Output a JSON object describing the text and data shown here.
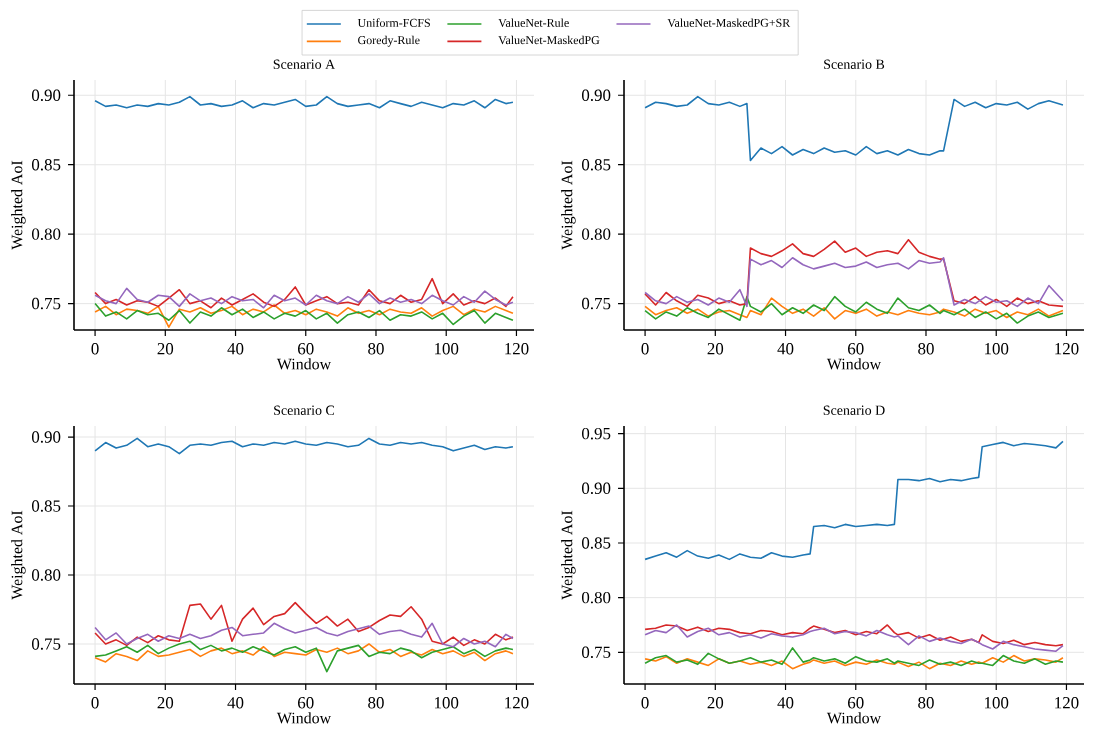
{
  "chart_data": [
    {
      "type": "line",
      "title": "Scenario A",
      "xlabel": "Window",
      "ylabel": "Weighted AoI",
      "xlim": [
        -6,
        125
      ],
      "ylim": [
        0.731,
        0.911
      ],
      "xticks": [
        0,
        20,
        40,
        60,
        80,
        100,
        120
      ],
      "yticks": [
        {
          "value": 0.75,
          "label": "0.75"
        },
        {
          "value": 0.8,
          "label": "0.80"
        },
        {
          "value": 0.85,
          "label": "0.85"
        },
        {
          "value": 0.9,
          "label": "0.90"
        }
      ],
      "grid": true,
      "legend": "top",
      "marker": "none",
      "line_style": "solid",
      "x": [
        0,
        3,
        6,
        9,
        12,
        15,
        18,
        21,
        24,
        27,
        30,
        33,
        36,
        39,
        42,
        45,
        48,
        51,
        54,
        57,
        60,
        63,
        66,
        69,
        72,
        75,
        78,
        81,
        84,
        87,
        90,
        93,
        96,
        99,
        102,
        105,
        108,
        111,
        114,
        117,
        119
      ],
      "series": [
        {
          "name": "Uniform-FCFS",
          "color": "#1f77b4",
          "values": [
            0.896,
            0.892,
            0.893,
            0.891,
            0.893,
            0.892,
            0.894,
            0.893,
            0.895,
            0.899,
            0.893,
            0.894,
            0.892,
            0.893,
            0.896,
            0.891,
            0.894,
            0.893,
            0.895,
            0.897,
            0.892,
            0.893,
            0.899,
            0.894,
            0.892,
            0.893,
            0.894,
            0.891,
            0.896,
            0.894,
            0.892,
            0.895,
            0.893,
            0.891,
            0.894,
            0.893,
            0.896,
            0.891,
            0.897,
            0.894,
            0.895
          ]
        },
        {
          "name": "Goredy-Rule",
          "color": "#ff7f0e",
          "values": [
            0.744,
            0.748,
            0.742,
            0.746,
            0.745,
            0.743,
            0.748,
            0.733,
            0.746,
            0.744,
            0.747,
            0.743,
            0.745,
            0.748,
            0.742,
            0.746,
            0.744,
            0.749,
            0.743,
            0.745,
            0.742,
            0.746,
            0.744,
            0.741,
            0.747,
            0.743,
            0.745,
            0.742,
            0.746,
            0.744,
            0.743,
            0.747,
            0.741,
            0.745,
            0.748,
            0.742,
            0.746,
            0.744,
            0.748,
            0.745,
            0.743
          ]
        },
        {
          "name": "ValueNet-Rule",
          "color": "#2ca02c",
          "values": [
            0.75,
            0.741,
            0.744,
            0.739,
            0.745,
            0.742,
            0.743,
            0.738,
            0.745,
            0.736,
            0.744,
            0.741,
            0.747,
            0.742,
            0.746,
            0.74,
            0.744,
            0.739,
            0.743,
            0.741,
            0.745,
            0.739,
            0.743,
            0.736,
            0.742,
            0.744,
            0.74,
            0.745,
            0.738,
            0.742,
            0.741,
            0.744,
            0.739,
            0.743,
            0.735,
            0.741,
            0.745,
            0.736,
            0.743,
            0.74,
            0.738
          ]
        },
        {
          "name": "ValueNet-MaskedPG",
          "color": "#d62728",
          "values": [
            0.758,
            0.75,
            0.753,
            0.749,
            0.752,
            0.751,
            0.748,
            0.754,
            0.76,
            0.75,
            0.752,
            0.747,
            0.754,
            0.749,
            0.753,
            0.757,
            0.751,
            0.748,
            0.753,
            0.762,
            0.749,
            0.752,
            0.755,
            0.75,
            0.751,
            0.749,
            0.76,
            0.752,
            0.75,
            0.756,
            0.751,
            0.753,
            0.768,
            0.75,
            0.757,
            0.749,
            0.752,
            0.75,
            0.754,
            0.748,
            0.755
          ]
        },
        {
          "name": "ValueNet-MaskedPG+SR",
          "color": "#9467bd",
          "values": [
            0.756,
            0.752,
            0.75,
            0.761,
            0.753,
            0.751,
            0.756,
            0.755,
            0.748,
            0.757,
            0.752,
            0.754,
            0.75,
            0.755,
            0.752,
            0.753,
            0.747,
            0.756,
            0.752,
            0.754,
            0.749,
            0.756,
            0.752,
            0.75,
            0.755,
            0.751,
            0.757,
            0.75,
            0.754,
            0.751,
            0.753,
            0.75,
            0.756,
            0.752,
            0.749,
            0.755,
            0.751,
            0.759,
            0.753,
            0.749,
            0.751
          ]
        }
      ]
    },
    {
      "type": "line",
      "title": "Scenario B",
      "xlabel": "Window",
      "ylabel": "Weighted AoI",
      "xlim": [
        -6,
        125
      ],
      "ylim": [
        0.731,
        0.911
      ],
      "xticks": [
        0,
        20,
        40,
        60,
        80,
        100,
        120
      ],
      "yticks": [
        {
          "value": 0.75,
          "label": "0.75"
        },
        {
          "value": 0.8,
          "label": "0.80"
        },
        {
          "value": 0.85,
          "label": "0.85"
        },
        {
          "value": 0.9,
          "label": "0.90"
        }
      ],
      "grid": true,
      "marker": "none",
      "line_style": "solid",
      "x": [
        0,
        3,
        6,
        9,
        12,
        15,
        18,
        21,
        24,
        27,
        29,
        30,
        33,
        36,
        39,
        42,
        45,
        48,
        51,
        54,
        57,
        60,
        63,
        66,
        69,
        72,
        75,
        78,
        81,
        84,
        85,
        88,
        91,
        94,
        97,
        100,
        103,
        106,
        109,
        112,
        115,
        119
      ],
      "series": [
        {
          "color": "#1f77b4",
          "values": [
            0.891,
            0.895,
            0.894,
            0.892,
            0.893,
            0.899,
            0.894,
            0.893,
            0.895,
            0.892,
            0.894,
            0.853,
            0.862,
            0.858,
            0.863,
            0.857,
            0.861,
            0.858,
            0.862,
            0.859,
            0.86,
            0.857,
            0.863,
            0.858,
            0.86,
            0.857,
            0.861,
            0.858,
            0.857,
            0.86,
            0.86,
            0.897,
            0.892,
            0.895,
            0.891,
            0.894,
            0.893,
            0.895,
            0.89,
            0.894,
            0.896,
            0.893
          ]
        },
        {
          "color": "#ff7f0e",
          "values": [
            0.748,
            0.742,
            0.745,
            0.747,
            0.743,
            0.746,
            0.741,
            0.744,
            0.745,
            0.742,
            0.74,
            0.745,
            0.742,
            0.754,
            0.748,
            0.743,
            0.746,
            0.741,
            0.747,
            0.739,
            0.745,
            0.743,
            0.746,
            0.741,
            0.744,
            0.742,
            0.745,
            0.743,
            0.742,
            0.744,
            0.746,
            0.744,
            0.741,
            0.746,
            0.743,
            0.745,
            0.74,
            0.744,
            0.742,
            0.746,
            0.741,
            0.745
          ]
        },
        {
          "color": "#2ca02c",
          "values": [
            0.745,
            0.739,
            0.744,
            0.741,
            0.747,
            0.743,
            0.74,
            0.746,
            0.742,
            0.738,
            0.755,
            0.748,
            0.744,
            0.75,
            0.742,
            0.747,
            0.743,
            0.749,
            0.745,
            0.755,
            0.748,
            0.744,
            0.751,
            0.746,
            0.743,
            0.754,
            0.747,
            0.745,
            0.749,
            0.743,
            0.745,
            0.742,
            0.746,
            0.74,
            0.744,
            0.739,
            0.743,
            0.736,
            0.741,
            0.744,
            0.74,
            0.743
          ]
        },
        {
          "color": "#d62728",
          "values": [
            0.757,
            0.749,
            0.758,
            0.752,
            0.748,
            0.756,
            0.754,
            0.75,
            0.752,
            0.749,
            0.75,
            0.79,
            0.786,
            0.784,
            0.788,
            0.793,
            0.786,
            0.784,
            0.789,
            0.795,
            0.787,
            0.79,
            0.784,
            0.787,
            0.788,
            0.786,
            0.796,
            0.787,
            0.784,
            0.782,
            0.782,
            0.752,
            0.75,
            0.755,
            0.749,
            0.753,
            0.748,
            0.754,
            0.75,
            0.752,
            0.749,
            0.748
          ]
        },
        {
          "color": "#9467bd",
          "values": [
            0.758,
            0.752,
            0.75,
            0.755,
            0.751,
            0.753,
            0.749,
            0.754,
            0.751,
            0.76,
            0.748,
            0.782,
            0.778,
            0.781,
            0.776,
            0.783,
            0.778,
            0.775,
            0.777,
            0.779,
            0.776,
            0.777,
            0.78,
            0.776,
            0.778,
            0.779,
            0.775,
            0.781,
            0.779,
            0.78,
            0.783,
            0.749,
            0.753,
            0.75,
            0.755,
            0.751,
            0.752,
            0.748,
            0.754,
            0.75,
            0.763,
            0.752
          ]
        }
      ]
    },
    {
      "type": "line",
      "title": "Scenario C",
      "xlabel": "Window",
      "ylabel": "Weighted AoI",
      "xlim": [
        -6,
        125
      ],
      "ylim": [
        0.721,
        0.908
      ],
      "xticks": [
        0,
        20,
        40,
        60,
        80,
        100,
        120
      ],
      "yticks": [
        {
          "value": 0.75,
          "label": "0.75"
        },
        {
          "value": 0.8,
          "label": "0.80"
        },
        {
          "value": 0.85,
          "label": "0.85"
        },
        {
          "value": 0.9,
          "label": "0.90"
        }
      ],
      "grid": true,
      "marker": "none",
      "line_style": "solid",
      "x": [
        0,
        3,
        6,
        9,
        12,
        15,
        18,
        21,
        24,
        27,
        30,
        33,
        36,
        39,
        42,
        45,
        48,
        51,
        54,
        57,
        60,
        63,
        66,
        69,
        72,
        75,
        78,
        81,
        84,
        87,
        90,
        93,
        96,
        99,
        102,
        105,
        108,
        111,
        114,
        117,
        119
      ],
      "series": [
        {
          "color": "#1f77b4",
          "values": [
            0.89,
            0.896,
            0.892,
            0.894,
            0.899,
            0.893,
            0.895,
            0.893,
            0.888,
            0.894,
            0.895,
            0.894,
            0.896,
            0.897,
            0.893,
            0.895,
            0.894,
            0.896,
            0.895,
            0.897,
            0.895,
            0.894,
            0.896,
            0.895,
            0.893,
            0.894,
            0.899,
            0.895,
            0.894,
            0.896,
            0.895,
            0.896,
            0.894,
            0.893,
            0.89,
            0.892,
            0.894,
            0.891,
            0.893,
            0.892,
            0.893
          ]
        },
        {
          "color": "#ff7f0e",
          "values": [
            0.74,
            0.737,
            0.743,
            0.741,
            0.738,
            0.745,
            0.741,
            0.742,
            0.744,
            0.746,
            0.741,
            0.745,
            0.747,
            0.743,
            0.745,
            0.742,
            0.748,
            0.741,
            0.744,
            0.743,
            0.742,
            0.746,
            0.744,
            0.747,
            0.743,
            0.745,
            0.75,
            0.744,
            0.746,
            0.741,
            0.744,
            0.742,
            0.746,
            0.743,
            0.745,
            0.741,
            0.744,
            0.738,
            0.743,
            0.745,
            0.743
          ]
        },
        {
          "color": "#2ca02c",
          "values": [
            0.741,
            0.742,
            0.745,
            0.748,
            0.744,
            0.749,
            0.743,
            0.747,
            0.75,
            0.752,
            0.746,
            0.749,
            0.745,
            0.747,
            0.744,
            0.748,
            0.745,
            0.742,
            0.746,
            0.748,
            0.744,
            0.747,
            0.73,
            0.745,
            0.747,
            0.749,
            0.741,
            0.744,
            0.743,
            0.747,
            0.745,
            0.74,
            0.744,
            0.746,
            0.748,
            0.743,
            0.746,
            0.741,
            0.745,
            0.747,
            0.746
          ]
        },
        {
          "color": "#d62728",
          "values": [
            0.758,
            0.75,
            0.753,
            0.749,
            0.755,
            0.751,
            0.756,
            0.753,
            0.752,
            0.778,
            0.779,
            0.768,
            0.778,
            0.752,
            0.768,
            0.776,
            0.764,
            0.77,
            0.772,
            0.78,
            0.772,
            0.765,
            0.77,
            0.763,
            0.768,
            0.759,
            0.762,
            0.767,
            0.771,
            0.77,
            0.777,
            0.768,
            0.752,
            0.75,
            0.755,
            0.749,
            0.753,
            0.75,
            0.757,
            0.753,
            0.755
          ]
        },
        {
          "color": "#9467bd",
          "values": [
            0.762,
            0.753,
            0.758,
            0.75,
            0.754,
            0.757,
            0.752,
            0.756,
            0.754,
            0.757,
            0.754,
            0.756,
            0.76,
            0.762,
            0.756,
            0.757,
            0.758,
            0.765,
            0.761,
            0.758,
            0.76,
            0.762,
            0.758,
            0.756,
            0.759,
            0.761,
            0.763,
            0.757,
            0.759,
            0.76,
            0.757,
            0.755,
            0.765,
            0.75,
            0.748,
            0.754,
            0.75,
            0.752,
            0.748,
            0.757,
            0.754
          ]
        }
      ]
    },
    {
      "type": "line",
      "title": "Scenario D",
      "xlabel": "Window",
      "ylabel": "Weighted AoI",
      "xlim": [
        -6,
        125
      ],
      "ylim": [
        0.721,
        0.957
      ],
      "xticks": [
        0,
        20,
        40,
        60,
        80,
        100,
        120
      ],
      "yticks": [
        {
          "value": 0.75,
          "label": "0.75"
        },
        {
          "value": 0.8,
          "label": "0.80"
        },
        {
          "value": 0.85,
          "label": "0.85"
        },
        {
          "value": 0.9,
          "label": "0.90"
        },
        {
          "value": 0.95,
          "label": "0.95"
        }
      ],
      "grid": true,
      "marker": "none",
      "line_style": "solid",
      "x": [
        0,
        3,
        6,
        9,
        12,
        15,
        18,
        21,
        24,
        27,
        30,
        33,
        36,
        39,
        42,
        45,
        47,
        48,
        51,
        54,
        57,
        60,
        63,
        66,
        69,
        71,
        72,
        75,
        78,
        81,
        84,
        87,
        90,
        93,
        95,
        96,
        99,
        102,
        105,
        108,
        111,
        114,
        117,
        119
      ],
      "series": [
        {
          "color": "#1f77b4",
          "values": [
            0.835,
            0.838,
            0.841,
            0.837,
            0.843,
            0.838,
            0.836,
            0.839,
            0.835,
            0.84,
            0.837,
            0.836,
            0.841,
            0.838,
            0.837,
            0.839,
            0.84,
            0.865,
            0.866,
            0.864,
            0.867,
            0.865,
            0.866,
            0.867,
            0.866,
            0.867,
            0.908,
            0.908,
            0.907,
            0.909,
            0.906,
            0.908,
            0.907,
            0.909,
            0.91,
            0.938,
            0.94,
            0.942,
            0.939,
            0.941,
            0.94,
            0.939,
            0.937,
            0.943
          ]
        },
        {
          "color": "#ff7f0e",
          "values": [
            0.744,
            0.742,
            0.746,
            0.74,
            0.744,
            0.741,
            0.738,
            0.744,
            0.74,
            0.742,
            0.739,
            0.741,
            0.738,
            0.742,
            0.735,
            0.739,
            0.741,
            0.743,
            0.74,
            0.742,
            0.738,
            0.741,
            0.739,
            0.743,
            0.74,
            0.739,
            0.741,
            0.737,
            0.741,
            0.735,
            0.74,
            0.738,
            0.742,
            0.739,
            0.741,
            0.74,
            0.745,
            0.741,
            0.747,
            0.742,
            0.744,
            0.743,
            0.741,
            0.745
          ]
        },
        {
          "color": "#2ca02c",
          "values": [
            0.74,
            0.745,
            0.747,
            0.741,
            0.743,
            0.739,
            0.749,
            0.744,
            0.74,
            0.742,
            0.745,
            0.741,
            0.743,
            0.739,
            0.754,
            0.741,
            0.743,
            0.745,
            0.742,
            0.744,
            0.74,
            0.746,
            0.742,
            0.741,
            0.744,
            0.74,
            0.742,
            0.74,
            0.738,
            0.743,
            0.739,
            0.741,
            0.738,
            0.742,
            0.74,
            0.74,
            0.738,
            0.747,
            0.742,
            0.74,
            0.744,
            0.739,
            0.742,
            0.741
          ]
        },
        {
          "color": "#d62728",
          "values": [
            0.771,
            0.772,
            0.775,
            0.774,
            0.77,
            0.773,
            0.769,
            0.772,
            0.771,
            0.768,
            0.767,
            0.77,
            0.769,
            0.766,
            0.768,
            0.767,
            0.772,
            0.774,
            0.771,
            0.768,
            0.77,
            0.766,
            0.769,
            0.767,
            0.775,
            0.768,
            0.766,
            0.768,
            0.763,
            0.766,
            0.761,
            0.764,
            0.76,
            0.762,
            0.759,
            0.766,
            0.76,
            0.758,
            0.761,
            0.757,
            0.759,
            0.757,
            0.756,
            0.757
          ]
        },
        {
          "color": "#9467bd",
          "values": [
            0.766,
            0.77,
            0.768,
            0.775,
            0.764,
            0.769,
            0.772,
            0.766,
            0.768,
            0.764,
            0.766,
            0.763,
            0.767,
            0.765,
            0.764,
            0.766,
            0.769,
            0.77,
            0.772,
            0.767,
            0.769,
            0.768,
            0.765,
            0.77,
            0.766,
            0.764,
            0.765,
            0.757,
            0.765,
            0.76,
            0.763,
            0.76,
            0.758,
            0.762,
            0.759,
            0.757,
            0.753,
            0.76,
            0.757,
            0.755,
            0.753,
            0.752,
            0.751,
            0.756
          ]
        }
      ]
    }
  ]
}
